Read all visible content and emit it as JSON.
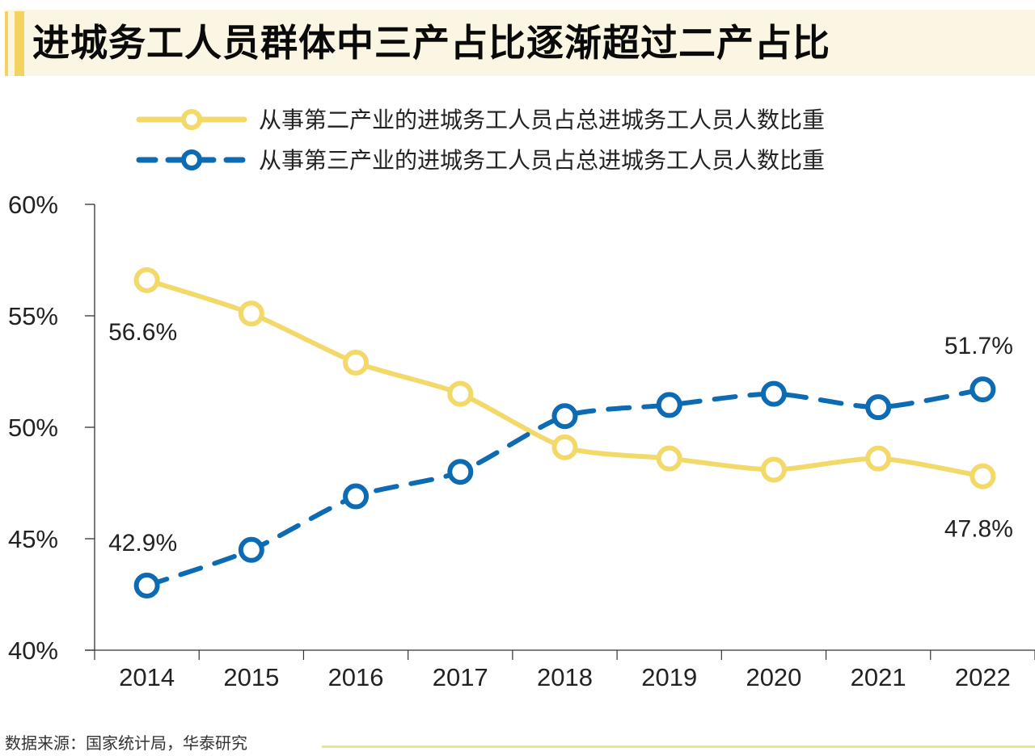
{
  "title": "进城务工人员群体中三产占比逐渐超过二产占比",
  "source": "数据来源：国家统计局，华泰研究",
  "colors": {
    "secondary": "#f2d96a",
    "tertiary": "#0d6bb3",
    "title_accent": "#f2d35f",
    "title_bg": "#fbf5e4"
  },
  "chart_data": {
    "type": "line",
    "title": "进城务工人员群体中三产占比逐渐超过二产占比",
    "xlabel": "",
    "ylabel": "",
    "x": [
      "2014",
      "2015",
      "2016",
      "2017",
      "2018",
      "2019",
      "2020",
      "2021",
      "2022"
    ],
    "ylim": [
      40,
      60
    ],
    "yticks": [
      40,
      45,
      50,
      55,
      60
    ],
    "ytick_labels": [
      "40%",
      "45%",
      "50%",
      "55%",
      "60%"
    ],
    "grid": false,
    "legend_position": "top-center",
    "series": [
      {
        "name": "从事第二产业的进城务工人员占总进城务工人员人数比重",
        "style": "solid",
        "color": "#f2d96a",
        "values": [
          56.6,
          55.1,
          52.9,
          51.5,
          49.1,
          48.6,
          48.1,
          48.6,
          47.8
        ],
        "labels": [
          {
            "index": 0,
            "text": "56.6%",
            "position": "below"
          },
          {
            "index": 8,
            "text": "47.8%",
            "position": "below"
          }
        ]
      },
      {
        "name": "从事第三产业的进城务工人员占总进城务工人员人数比重",
        "style": "dashed",
        "color": "#0d6bb3",
        "values": [
          42.9,
          44.5,
          46.9,
          48.0,
          50.5,
          51.0,
          51.5,
          50.9,
          51.7
        ],
        "labels": [
          {
            "index": 0,
            "text": "42.9%",
            "position": "above"
          },
          {
            "index": 8,
            "text": "51.7%",
            "position": "above"
          }
        ]
      }
    ]
  }
}
